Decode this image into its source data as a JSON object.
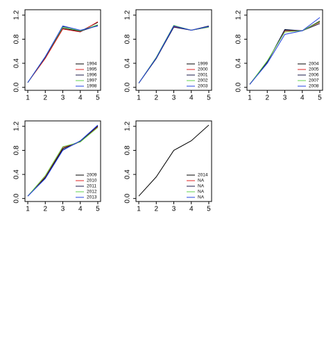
{
  "chart_data": [
    {
      "type": "line",
      "x": [
        1,
        2,
        3,
        4,
        5
      ],
      "xlim": [
        0.84,
        5.16
      ],
      "ylim": [
        -0.05,
        1.29
      ],
      "xticks": [
        1,
        2,
        3,
        4,
        5
      ],
      "yticks": [
        {
          "value": 0,
          "label": "0.0"
        },
        0.4,
        0.8,
        1.2
      ],
      "legend": "bottomright",
      "series": [
        {
          "name": "1994",
          "color": "#000000",
          "values": [
            0.08,
            0.5,
            0.98,
            0.93,
            1.08
          ]
        },
        {
          "name": "1995",
          "color": "#df2020",
          "values": [
            0.08,
            0.48,
            0.97,
            0.92,
            1.09
          ]
        },
        {
          "name": "1996",
          "color": "#1a1a4a",
          "values": [
            0.08,
            0.5,
            1.01,
            0.93,
            1.03
          ]
        },
        {
          "name": "1997",
          "color": "#61d04f",
          "values": [
            0.08,
            0.51,
            1.0,
            0.94,
            1.04
          ]
        },
        {
          "name": "1998",
          "color": "#2040e0",
          "values": [
            0.08,
            0.51,
            1.02,
            0.95,
            1.02
          ]
        }
      ]
    },
    {
      "type": "line",
      "x": [
        1,
        2,
        3,
        4,
        5
      ],
      "xlim": [
        0.84,
        5.16
      ],
      "ylim": [
        -0.05,
        1.29
      ],
      "xticks": [
        1,
        2,
        3,
        4,
        5
      ],
      "yticks": [
        {
          "value": 0,
          "label": "0.0"
        },
        0.4,
        0.8,
        1.2
      ],
      "legend": "bottomright",
      "series": [
        {
          "name": "1999",
          "color": "#000000",
          "values": [
            0.07,
            0.48,
            1.02,
            0.95,
            1.01
          ]
        },
        {
          "name": "2000",
          "color": "#df2020",
          "values": [
            0.07,
            0.49,
            1.01,
            0.95,
            1.0
          ]
        },
        {
          "name": "2001",
          "color": "#1a1a4a",
          "values": [
            0.07,
            0.48,
            1.0,
            0.95,
            1.02
          ]
        },
        {
          "name": "2002",
          "color": "#61d04f",
          "values": [
            0.07,
            0.5,
            1.03,
            0.95,
            1.0
          ]
        },
        {
          "name": "2003",
          "color": "#2040e0",
          "values": [
            0.07,
            0.49,
            1.02,
            0.95,
            1.01
          ]
        }
      ]
    },
    {
      "type": "line",
      "x": [
        1,
        2,
        3,
        4,
        5
      ],
      "xlim": [
        0.84,
        5.16
      ],
      "ylim": [
        -0.05,
        1.29
      ],
      "xticks": [
        1,
        2,
        3,
        4,
        5
      ],
      "yticks": [
        {
          "value": 0,
          "label": "0.0"
        },
        0.4,
        0.8,
        1.2
      ],
      "legend": "bottomright",
      "series": [
        {
          "name": "2004",
          "color": "#000000",
          "values": [
            0.05,
            0.42,
            0.95,
            0.94,
            1.1
          ]
        },
        {
          "name": "2005",
          "color": "#df2020",
          "values": [
            0.05,
            0.43,
            0.93,
            0.94,
            1.08
          ]
        },
        {
          "name": "2006",
          "color": "#1a1a4a",
          "values": [
            0.05,
            0.42,
            0.96,
            0.94,
            1.06
          ]
        },
        {
          "name": "2007",
          "color": "#61d04f",
          "values": [
            0.05,
            0.44,
            0.92,
            0.94,
            1.09
          ]
        },
        {
          "name": "2008",
          "color": "#2040e0",
          "values": [
            0.05,
            0.4,
            0.88,
            0.94,
            1.16
          ]
        }
      ]
    },
    {
      "type": "line",
      "x": [
        1,
        2,
        3,
        4,
        5
      ],
      "xlim": [
        0.84,
        5.16
      ],
      "ylim": [
        -0.05,
        1.29
      ],
      "xticks": [
        1,
        2,
        3,
        4,
        5
      ],
      "yticks": [
        {
          "value": 0,
          "label": "0.0"
        },
        0.4,
        0.8,
        1.2
      ],
      "legend": "bottomright",
      "series": [
        {
          "name": "2009",
          "color": "#000000",
          "values": [
            0.04,
            0.35,
            0.83,
            0.95,
            1.2
          ]
        },
        {
          "name": "2010",
          "color": "#df2020",
          "values": [
            0.04,
            0.37,
            0.85,
            0.94,
            1.19
          ]
        },
        {
          "name": "2011",
          "color": "#1a1a4a",
          "values": [
            0.04,
            0.34,
            0.81,
            0.95,
            1.21
          ]
        },
        {
          "name": "2012",
          "color": "#61d04f",
          "values": [
            0.04,
            0.38,
            0.86,
            0.94,
            1.18
          ]
        },
        {
          "name": "2013",
          "color": "#2040e0",
          "values": [
            0.04,
            0.33,
            0.8,
            0.96,
            1.22
          ]
        }
      ]
    },
    {
      "type": "line",
      "x": [
        1,
        2,
        3,
        4,
        5
      ],
      "xlim": [
        0.84,
        5.16
      ],
      "ylim": [
        -0.05,
        1.29
      ],
      "xticks": [
        1,
        2,
        3,
        4,
        5
      ],
      "yticks": [
        {
          "value": 0,
          "label": "0.0"
        },
        0.4,
        0.8,
        1.2
      ],
      "legend": "bottomright",
      "series": [
        {
          "name": "2014",
          "color": "#000000",
          "values": [
            0.04,
            0.36,
            0.8,
            0.96,
            1.22
          ]
        },
        {
          "name": "NA",
          "color": "#df2020",
          "values": [
            null,
            null,
            null,
            null,
            null
          ]
        },
        {
          "name": "NA",
          "color": "#1a1a4a",
          "values": [
            null,
            null,
            null,
            null,
            null
          ]
        },
        {
          "name": "NA",
          "color": "#61d04f",
          "values": [
            null,
            null,
            null,
            null,
            null
          ]
        },
        {
          "name": "NA",
          "color": "#2040e0",
          "values": [
            null,
            null,
            null,
            null,
            null
          ]
        }
      ]
    }
  ]
}
